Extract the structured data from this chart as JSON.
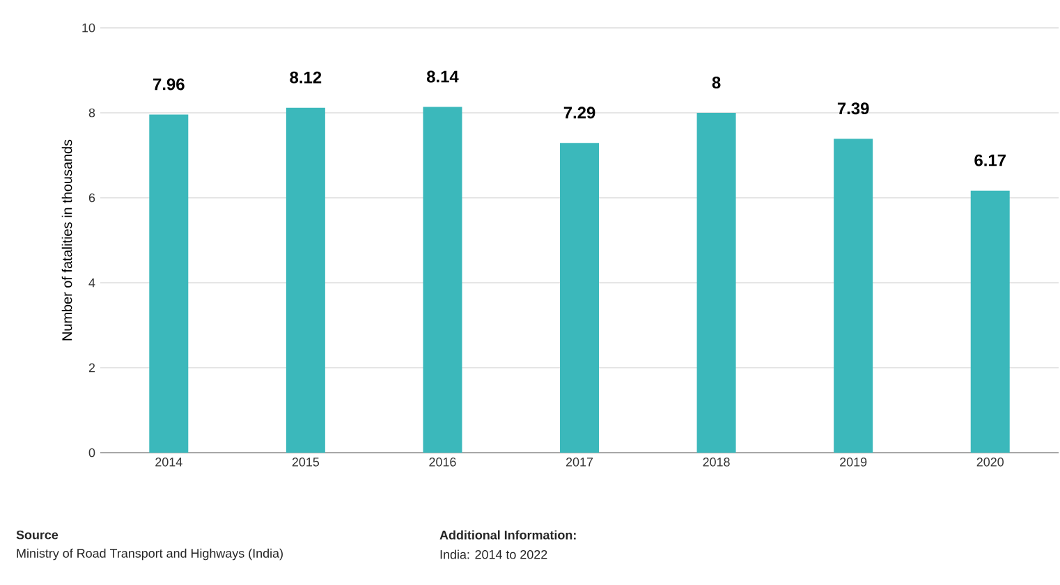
{
  "chart_data": {
    "type": "bar",
    "ylabel": "Number of fatalities in thousands",
    "categories": [
      "2014",
      "2015",
      "2016",
      "2017",
      "2018",
      "2019",
      "2020"
    ],
    "values": [
      7.96,
      8.12,
      8.14,
      7.29,
      8,
      7.39,
      6.17
    ],
    "color": "#3bb8bb",
    "ylim": [
      0,
      10
    ],
    "yticks": [
      0,
      2,
      4,
      6,
      8,
      10
    ],
    "grid": "y",
    "data_labels": true,
    "annotations": [
      "Source",
      "Ministry of Road Transport and Highways (India)",
      "Additional Information:",
      "India: 2014 to 2022"
    ]
  }
}
